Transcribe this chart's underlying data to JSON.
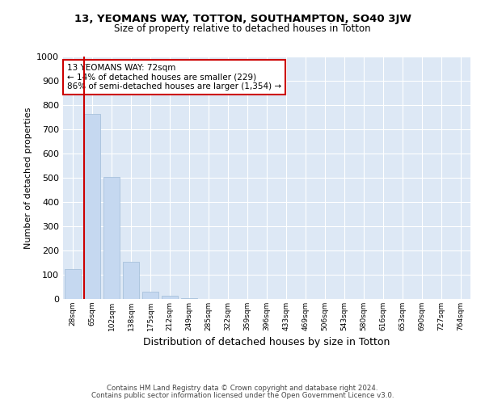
{
  "title_line1": "13, YEOMANS WAY, TOTTON, SOUTHAMPTON, SO40 3JW",
  "title_line2": "Size of property relative to detached houses in Totton",
  "xlabel": "Distribution of detached houses by size in Totton",
  "ylabel": "Number of detached properties",
  "footer_line1": "Contains HM Land Registry data © Crown copyright and database right 2024.",
  "footer_line2": "Contains public sector information licensed under the Open Government Licence v3.0.",
  "annotation_line1": "13 YEOMANS WAY: 72sqm",
  "annotation_line2": "← 14% of detached houses are smaller (229)",
  "annotation_line3": "86% of semi-detached houses are larger (1,354) →",
  "bar_color": "#c5d8f0",
  "bar_edge_color": "#a0bcd8",
  "marker_color": "#cc0000",
  "background_color": "#dde8f5",
  "categories": [
    "28sqm",
    "65sqm",
    "102sqm",
    "138sqm",
    "175sqm",
    "212sqm",
    "249sqm",
    "285sqm",
    "322sqm",
    "359sqm",
    "396sqm",
    "433sqm",
    "469sqm",
    "506sqm",
    "543sqm",
    "580sqm",
    "616sqm",
    "653sqm",
    "690sqm",
    "727sqm",
    "764sqm"
  ],
  "values": [
    125,
    765,
    505,
    155,
    30,
    15,
    5,
    0,
    0,
    0,
    0,
    0,
    0,
    0,
    0,
    0,
    0,
    0,
    0,
    0,
    0
  ],
  "marker_index": 1,
  "ylim": [
    0,
    1000
  ],
  "yticks": [
    0,
    100,
    200,
    300,
    400,
    500,
    600,
    700,
    800,
    900,
    1000
  ]
}
